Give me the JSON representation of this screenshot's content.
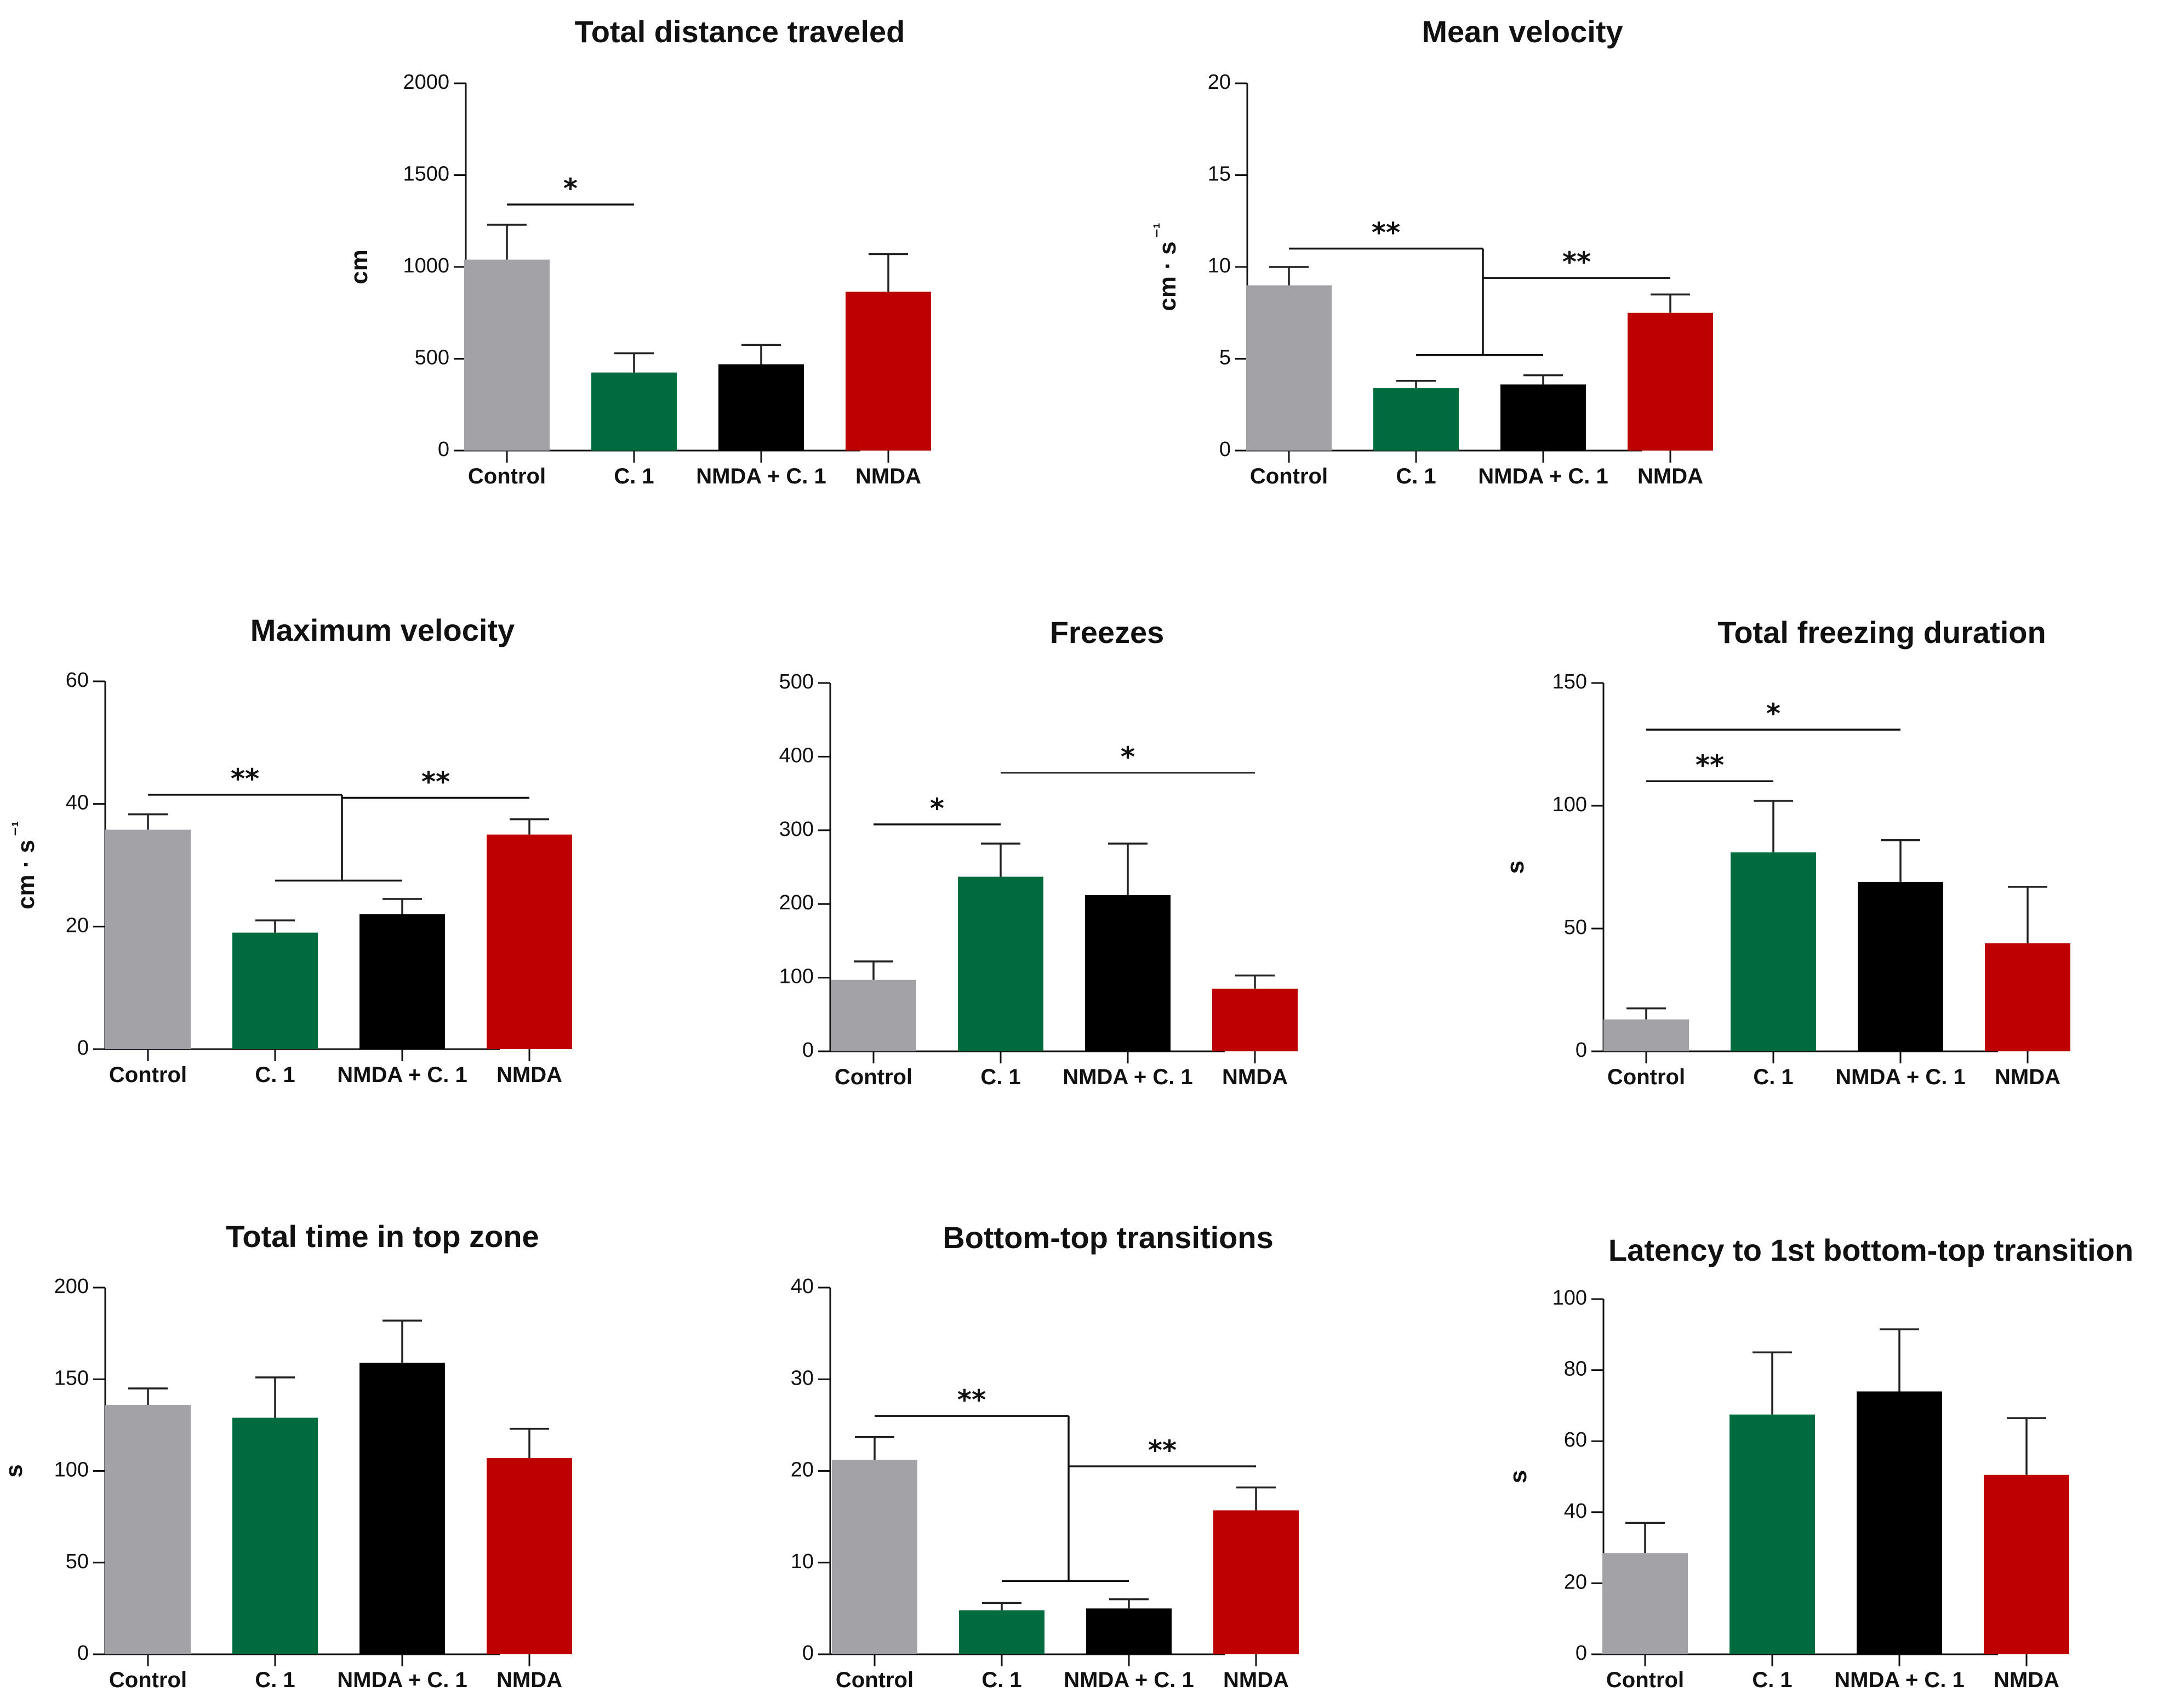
{
  "colors": {
    "Control": "#a3a2a7",
    "C. 1": "#006b3e",
    "NMDA + C. 1": "#000000",
    "NMDA": "#bd0000"
  },
  "chart_data": [
    {
      "type": "bar",
      "title": "Total distance traveled",
      "ylabel": "cm",
      "ylim": [
        0,
        2000
      ],
      "yticks": [
        0,
        500,
        1000,
        1500,
        2000
      ],
      "categories": [
        "Control",
        "C. 1",
        "NMDA + C. 1",
        "NMDA"
      ],
      "values": [
        1040,
        425,
        470,
        865
      ],
      "errors": [
        190,
        105,
        105,
        205
      ],
      "significance": [
        {
          "kind": "simple",
          "from": 0,
          "to": 1,
          "y": 1340,
          "label": "*"
        }
      ]
    },
    {
      "type": "bar",
      "title": "Mean velocity",
      "ylabel": "cm · s⁻¹",
      "ylim": [
        0,
        20
      ],
      "yticks": [
        0,
        5,
        10,
        15,
        20
      ],
      "categories": [
        "Control",
        "C. 1",
        "NMDA + C. 1",
        "NMDA"
      ],
      "values": [
        9.0,
        3.4,
        3.6,
        7.5
      ],
      "errors": [
        1.0,
        0.4,
        0.5,
        1.0
      ],
      "significance": [
        {
          "kind": "group",
          "from": 0,
          "groupFrom": 1,
          "groupTo": 2,
          "y": 11.0,
          "groupY": 5.2,
          "label": "**"
        },
        {
          "kind": "simple",
          "fromJoin": true,
          "to": 3,
          "y": 9.4,
          "label": "**"
        }
      ]
    },
    {
      "type": "bar",
      "title": "Maximum velocity",
      "ylabel": "cm · s⁻¹",
      "ylim": [
        0,
        60
      ],
      "yticks": [
        0,
        20,
        40,
        60
      ],
      "categories": [
        "Control",
        "C. 1",
        "NMDA + C. 1",
        "NMDA"
      ],
      "values": [
        35.8,
        19.0,
        22.0,
        35.0
      ],
      "errors": [
        2.5,
        2.0,
        2.5,
        2.5
      ],
      "significance": [
        {
          "kind": "group",
          "from": 0,
          "groupFrom": 1,
          "groupTo": 2,
          "y": 41.5,
          "groupY": 27.5,
          "label": "**"
        },
        {
          "kind": "simple",
          "fromJoin": true,
          "to": 3,
          "y": 41.0,
          "label": "**"
        }
      ]
    },
    {
      "type": "bar",
      "title": "Freezes",
      "ylabel": "",
      "ylim": [
        0,
        500
      ],
      "yticks": [
        0,
        100,
        200,
        300,
        400,
        500
      ],
      "categories": [
        "Control",
        "C. 1",
        "NMDA + C. 1",
        "NMDA"
      ],
      "values": [
        97,
        237,
        212,
        85
      ],
      "errors": [
        25,
        45,
        70,
        18
      ],
      "significance": [
        {
          "kind": "simple",
          "from": 0,
          "to": 1,
          "y": 308,
          "label": "*",
          "thin": false
        },
        {
          "kind": "simple",
          "from": 1,
          "to": 3,
          "y": 378,
          "label": "*",
          "thin": true
        }
      ]
    },
    {
      "type": "bar",
      "title": "Total freezing duration",
      "ylabel": "s",
      "ylim": [
        0,
        150
      ],
      "yticks": [
        0,
        50,
        100,
        150
      ],
      "categories": [
        "Control",
        "C. 1",
        "NMDA + C. 1",
        "NMDA"
      ],
      "values": [
        13,
        81,
        69,
        44
      ],
      "errors": [
        4.5,
        21,
        17,
        23
      ],
      "significance": [
        {
          "kind": "simple",
          "from": 0,
          "to": 2,
          "y": 131,
          "label": "*"
        },
        {
          "kind": "simple",
          "from": 0,
          "to": 1,
          "y": 110,
          "label": "**"
        }
      ]
    },
    {
      "type": "bar",
      "title": "Total time in top zone",
      "ylabel": "s",
      "ylim": [
        0,
        200
      ],
      "yticks": [
        0,
        50,
        100,
        150,
        200
      ],
      "categories": [
        "Control",
        "C. 1",
        "NMDA + C. 1",
        "NMDA"
      ],
      "values": [
        136,
        129,
        159,
        107
      ],
      "errors": [
        9,
        22,
        23,
        16
      ],
      "significance": []
    },
    {
      "type": "bar",
      "title": "Bottom-top transitions",
      "ylabel": "",
      "ylim": [
        0,
        40
      ],
      "yticks": [
        0,
        10,
        20,
        30,
        40
      ],
      "categories": [
        "Control",
        "C. 1",
        "NMDA + C. 1",
        "NMDA"
      ],
      "values": [
        21.2,
        4.8,
        5.0,
        15.7
      ],
      "errors": [
        2.5,
        0.8,
        1.0,
        2.5
      ],
      "significance": [
        {
          "kind": "group",
          "from": 0,
          "groupFrom": 1,
          "groupTo": 2,
          "y": 26.0,
          "groupY": 8.0,
          "label": "**"
        },
        {
          "kind": "simple",
          "fromJoin": true,
          "to": 3,
          "y": 20.5,
          "label": "**"
        }
      ]
    },
    {
      "type": "bar",
      "title": "Latency to 1st bottom-top transition",
      "ylabel": "s",
      "ylim": [
        0,
        100
      ],
      "yticks": [
        0,
        20,
        40,
        60,
        80,
        100
      ],
      "categories": [
        "Control",
        "C. 1",
        "NMDA + C. 1",
        "NMDA"
      ],
      "values": [
        28.5,
        67.5,
        74.0,
        50.5
      ],
      "errors": [
        8.5,
        17.5,
        17.5,
        16
      ],
      "significance": []
    }
  ]
}
